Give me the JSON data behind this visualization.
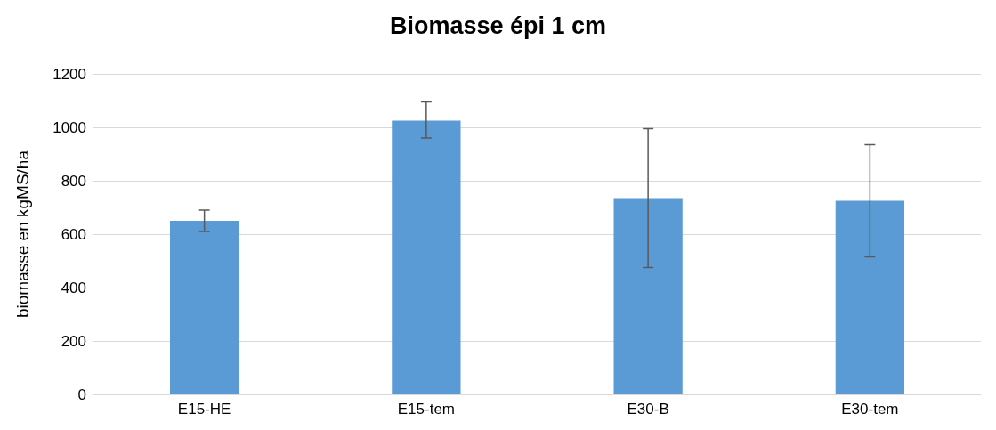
{
  "chart_data": {
    "type": "bar",
    "title": "Biomasse épi 1 cm",
    "ylabel": "biomasse en kgMS/ha",
    "categories": [
      "E15-HE",
      "E15-tem",
      "E30-B",
      "E30-tem"
    ],
    "values": [
      650,
      1025,
      735,
      725
    ],
    "errors": [
      [
        610,
        690
      ],
      [
        960,
        1095
      ],
      [
        475,
        995
      ],
      [
        515,
        935
      ]
    ],
    "color": "#5b9bd5",
    "ylim": [
      0,
      1200
    ],
    "yticks": [
      0,
      200,
      400,
      600,
      800,
      1000,
      1200
    ],
    "grid": "y"
  }
}
